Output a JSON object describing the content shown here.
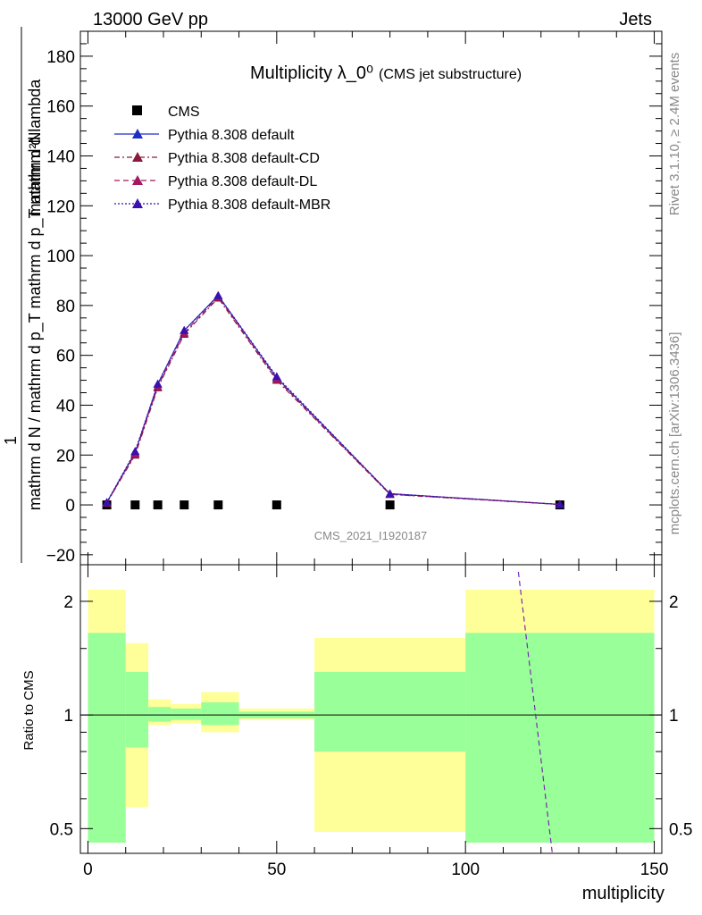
{
  "header": {
    "left": "13000 GeV pp",
    "right": "Jets"
  },
  "side_labels": {
    "rivet": "Rivet 3.1.10, ≥ 2.4M events",
    "mcplots": "mcplots.cern.ch [arXiv:1306.3436]"
  },
  "watermark": "CMS_2021_I1920187",
  "chart_data": [
    {
      "type": "line",
      "title": "Multiplicity λ_0⁰",
      "subtitle": "(CMS jet substructure)",
      "ylabel_fraction_numerator": "1",
      "ylabel_fraction_denominator": "mathrm d N / mathrm d p_T mathrm d p_T mathrm d lambda",
      "ylabel_dN": "mathrm d²N",
      "xlabel": "multiplicity",
      "xlim": [
        -2,
        152
      ],
      "ylim": [
        -24,
        190
      ],
      "yticks": [
        -20,
        0,
        20,
        40,
        60,
        80,
        100,
        120,
        140,
        160,
        180
      ],
      "xticks": [
        0,
        50,
        100,
        150
      ],
      "legend_position": "top-left",
      "series": [
        {
          "name": "CMS",
          "style": "square-marker",
          "color": "#000000",
          "x": [
            5,
            12.5,
            18.5,
            25.5,
            34.5,
            50,
            80,
            125
          ],
          "y": [
            0,
            0,
            0,
            0,
            0,
            0,
            0,
            0
          ]
        },
        {
          "name": "Pythia 8.308 default",
          "style": "solid",
          "color": "#1f2ec4",
          "x": [
            5,
            12.5,
            18.5,
            25.5,
            34.5,
            50,
            80,
            125
          ],
          "y": [
            1,
            21,
            48.5,
            70,
            84,
            51,
            4.5,
            0.2
          ]
        },
        {
          "name": "Pythia 8.308 default-CD",
          "style": "dashdot",
          "color": "#8b1a3a",
          "x": [
            5,
            12.5,
            18.5,
            25.5,
            34.5,
            50,
            80,
            125
          ],
          "y": [
            0.8,
            20,
            47,
            68.5,
            83,
            50,
            4.2,
            0.2
          ]
        },
        {
          "name": "Pythia 8.308 default-DL",
          "style": "dashed",
          "color": "#a3185e",
          "x": [
            5,
            12.5,
            18.5,
            25.5,
            34.5,
            50,
            80,
            125
          ],
          "y": [
            0.8,
            20.5,
            47.5,
            69,
            83.5,
            50.5,
            4.3,
            0.2
          ]
        },
        {
          "name": "Pythia 8.308 default-MBR",
          "style": "dotted",
          "color": "#3a10b0",
          "x": [
            5,
            12.5,
            18.5,
            25.5,
            34.5,
            50,
            80,
            125
          ],
          "y": [
            1,
            21.5,
            48.5,
            70,
            84,
            51.5,
            4.5,
            0.2
          ]
        }
      ]
    },
    {
      "type": "area",
      "ylabel": "Ratio to CMS",
      "xlabel": "multiplicity",
      "xlim": [
        -2,
        152
      ],
      "ylim": [
        0.43,
        2.5
      ],
      "ylog": true,
      "yticks": [
        0.5,
        1,
        2
      ],
      "xticks": [
        0,
        50,
        100,
        150
      ],
      "bins": [
        {
          "x0": 0,
          "x1": 10,
          "green": [
            0.43,
            1.65
          ],
          "yellow": [
            0.43,
            2.15
          ]
        },
        {
          "x0": 10,
          "x1": 16,
          "green": [
            0.82,
            1.3
          ],
          "yellow": [
            0.57,
            1.55
          ]
        },
        {
          "x0": 16,
          "x1": 22,
          "green": [
            0.96,
            1.05
          ],
          "yellow": [
            0.94,
            1.1
          ]
        },
        {
          "x0": 22,
          "x1": 30,
          "green": [
            0.97,
            1.04
          ],
          "yellow": [
            0.95,
            1.07
          ]
        },
        {
          "x0": 30,
          "x1": 40,
          "green": [
            0.94,
            1.08
          ],
          "yellow": [
            0.9,
            1.15
          ]
        },
        {
          "x0": 40,
          "x1": 60,
          "green": [
            0.98,
            1.02
          ],
          "yellow": [
            0.97,
            1.04
          ]
        },
        {
          "x0": 60,
          "x1": 100,
          "green": [
            0.8,
            1.3
          ],
          "yellow": [
            0.49,
            1.6
          ]
        },
        {
          "x0": 100,
          "x1": 150,
          "green": [
            0.43,
            1.65
          ],
          "yellow": [
            0.43,
            2.15
          ]
        }
      ],
      "reference_line": 1,
      "mc_ratio_line": {
        "x": [
          114,
          123
        ],
        "y": [
          2.5,
          0.43
        ],
        "color": "#7a2ab0"
      }
    }
  ]
}
